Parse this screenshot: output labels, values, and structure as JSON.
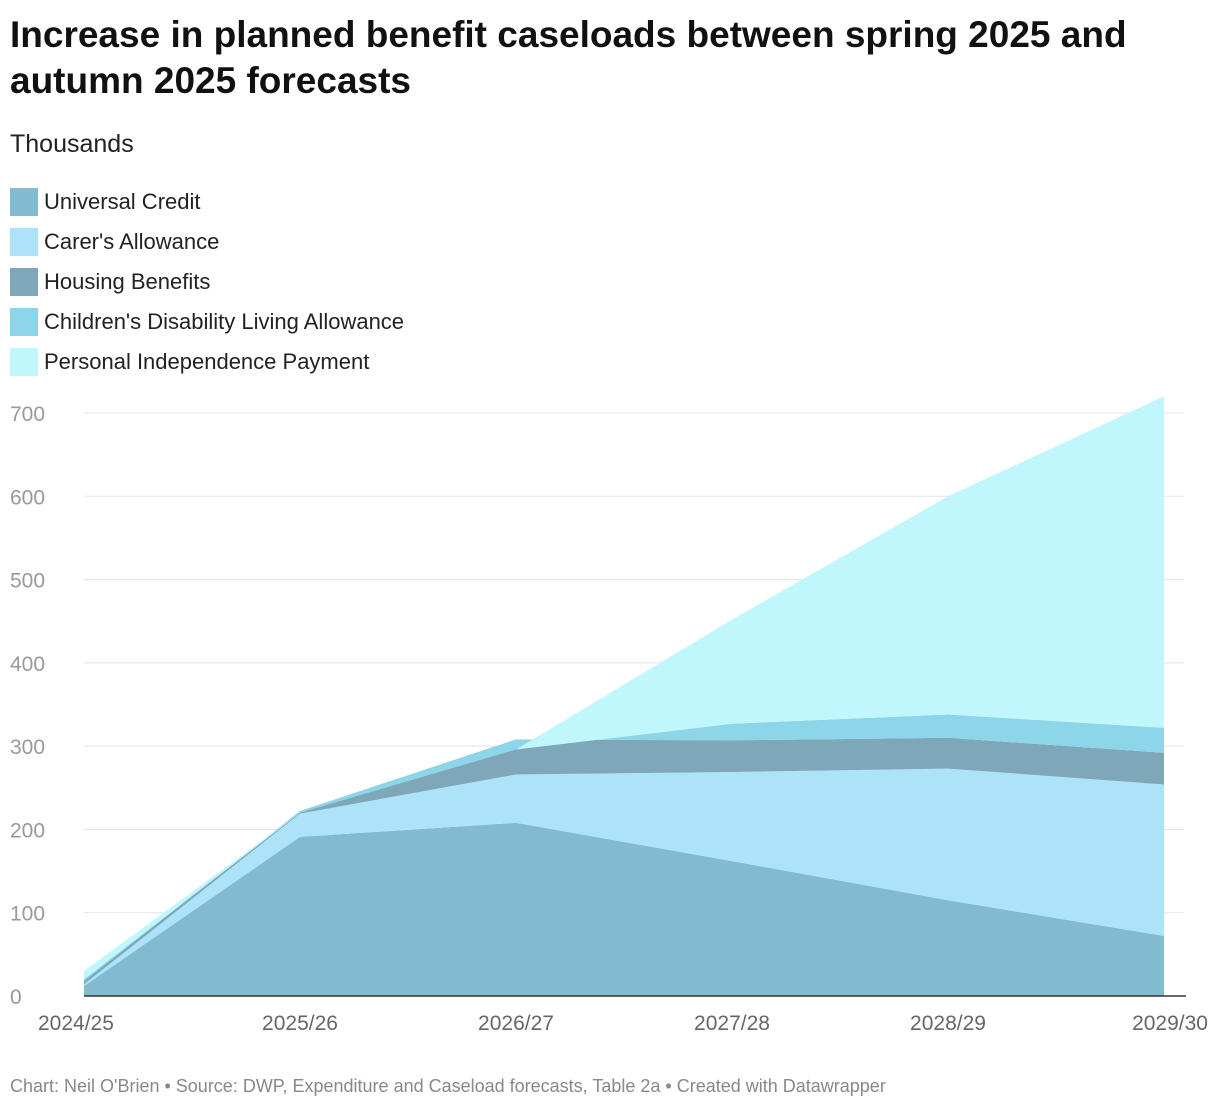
{
  "title": "Increase in planned benefit caseloads between spring 2025 and autumn 2025 forecasts",
  "subtitle": "Thousands",
  "footer": "Chart: Neil O'Brien • Source: DWP, Expenditure and Caseload forecasts, Table 2a • Created with Datawrapper",
  "chart_data": {
    "type": "area",
    "stacked": true,
    "title": "Increase in planned benefit caseloads between spring 2025 and autumn 2025 forecasts",
    "ylabel": "Thousands",
    "xlabel": "",
    "categories": [
      "2024/25",
      "2025/26",
      "2026/27",
      "2027/28",
      "2028/29",
      "2029/30"
    ],
    "ylim": [
      0,
      700
    ],
    "yticks": [
      0,
      100,
      200,
      300,
      400,
      500,
      600,
      700
    ],
    "grid": true,
    "legend_position": "top-left",
    "series": [
      {
        "name": "Universal Credit",
        "color": "#82bbd0",
        "values": [
          12,
          191,
          208,
          162,
          115,
          72
        ]
      },
      {
        "name": "Carer's Allowance",
        "color": "#ade3f8",
        "values": [
          2,
          28,
          58,
          107,
          158,
          182
        ]
      },
      {
        "name": "Housing Benefits",
        "color": "#7ea8ba",
        "values": [
          4,
          3,
          42,
          38,
          37,
          38
        ]
      },
      {
        "name": "Children's Disability Living Allowance",
        "color": "#8dd6ea",
        "values": [
          2,
          -2,
          -12,
          20,
          28,
          30
        ]
      },
      {
        "name": "Personal Independence Payment",
        "color": "#c0f7fd",
        "values": [
          10,
          0,
          0,
          125,
          262,
          398
        ]
      }
    ]
  }
}
